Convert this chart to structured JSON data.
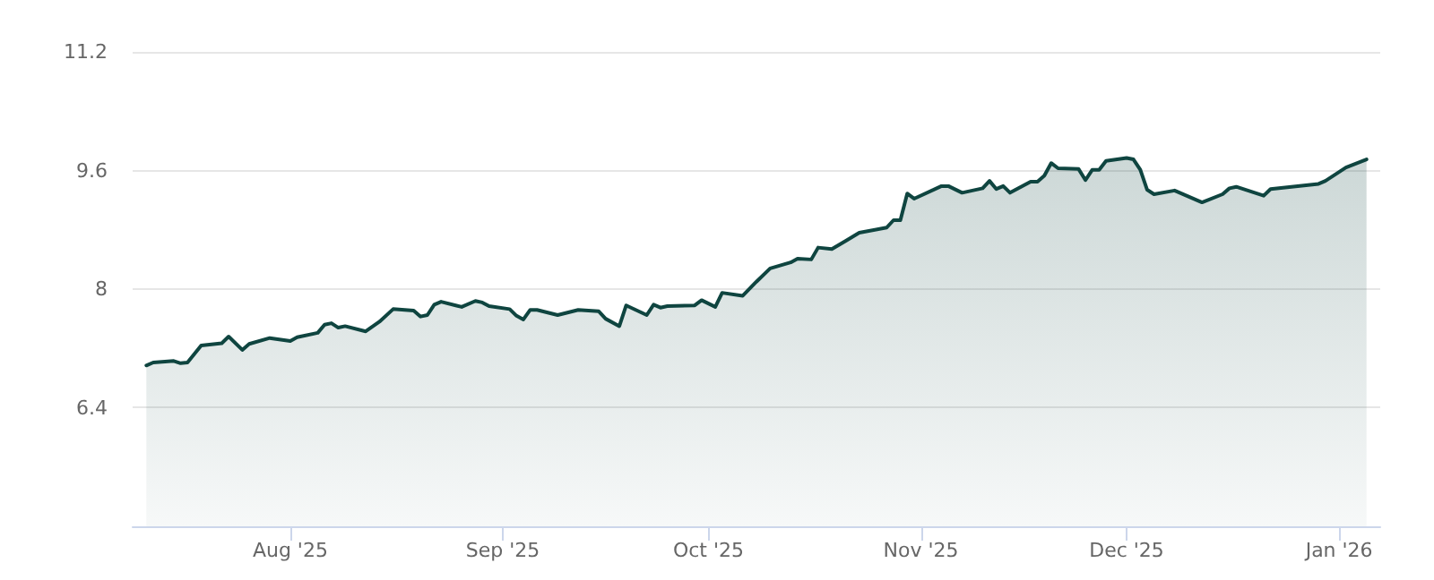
{
  "chart_data": {
    "type": "area",
    "xlim": [
      "2025-07-09",
      "2026-01-07"
    ],
    "ylim": [
      4.8,
      11.2
    ],
    "xticks": [
      {
        "value": "2025-08-01",
        "label": "Aug '25"
      },
      {
        "value": "2025-09-01",
        "label": "Sep '25"
      },
      {
        "value": "2025-10-01",
        "label": "Oct '25"
      },
      {
        "value": "2025-11-01",
        "label": "Nov '25"
      },
      {
        "value": "2025-12-01",
        "label": "Dec '25"
      },
      {
        "value": "2026-01-01",
        "label": "Jan '26"
      }
    ],
    "yticks": [
      6.4,
      8,
      9.6,
      11.2
    ],
    "grid": "y",
    "marker": "none",
    "line_style": "solid",
    "x": [
      "2025-07-11",
      "2025-07-12",
      "2025-07-15",
      "2025-07-16",
      "2025-07-17",
      "2025-07-19",
      "2025-07-22",
      "2025-07-23",
      "2025-07-25",
      "2025-07-26",
      "2025-07-29",
      "2025-08-01",
      "2025-08-02",
      "2025-08-05",
      "2025-08-06",
      "2025-08-07",
      "2025-08-08",
      "2025-08-09",
      "2025-08-12",
      "2025-08-14",
      "2025-08-16",
      "2025-08-19",
      "2025-08-20",
      "2025-08-21",
      "2025-08-22",
      "2025-08-23",
      "2025-08-26",
      "2025-08-28",
      "2025-08-29",
      "2025-08-30",
      "2025-09-02",
      "2025-09-03",
      "2025-09-04",
      "2025-09-05",
      "2025-09-06",
      "2025-09-09",
      "2025-09-12",
      "2025-09-15",
      "2025-09-16",
      "2025-09-18",
      "2025-09-19",
      "2025-09-22",
      "2025-09-23",
      "2025-09-24",
      "2025-09-25",
      "2025-09-29",
      "2025-09-30",
      "2025-10-02",
      "2025-10-03",
      "2025-10-06",
      "2025-10-08",
      "2025-10-10",
      "2025-10-13",
      "2025-10-14",
      "2025-10-16",
      "2025-10-17",
      "2025-10-19",
      "2025-10-21",
      "2025-10-23",
      "2025-10-27",
      "2025-10-28",
      "2025-10-29",
      "2025-10-30",
      "2025-10-31",
      "2025-11-04",
      "2025-11-05",
      "2025-11-07",
      "2025-11-10",
      "2025-11-11",
      "2025-11-12",
      "2025-11-13",
      "2025-11-14",
      "2025-11-17",
      "2025-11-18",
      "2025-11-19",
      "2025-11-20",
      "2025-11-21",
      "2025-11-24",
      "2025-11-25",
      "2025-11-26",
      "2025-11-27",
      "2025-11-28",
      "2025-12-01",
      "2025-12-02",
      "2025-12-03",
      "2025-12-04",
      "2025-12-05",
      "2025-12-08",
      "2025-12-12",
      "2025-12-15",
      "2025-12-16",
      "2025-12-17",
      "2025-12-21",
      "2025-12-22",
      "2025-12-29",
      "2025-12-30",
      "2026-01-02",
      "2026-01-05"
    ],
    "series": [
      {
        "color": "#0f4540",
        "values": [
          6.97,
          7.01,
          7.03,
          7.0,
          7.01,
          7.24,
          7.27,
          7.36,
          7.18,
          7.26,
          7.34,
          7.3,
          7.35,
          7.41,
          7.52,
          7.54,
          7.48,
          7.5,
          7.43,
          7.56,
          7.73,
          7.71,
          7.63,
          7.65,
          7.79,
          7.83,
          7.76,
          7.84,
          7.82,
          7.77,
          7.73,
          7.64,
          7.59,
          7.72,
          7.72,
          7.65,
          7.72,
          7.7,
          7.6,
          7.5,
          7.78,
          7.65,
          7.79,
          7.75,
          7.77,
          7.78,
          7.85,
          7.76,
          7.95,
          7.91,
          8.1,
          8.28,
          8.36,
          8.41,
          8.4,
          8.56,
          8.54,
          8.65,
          8.76,
          8.83,
          8.93,
          8.93,
          9.29,
          9.22,
          9.39,
          9.39,
          9.3,
          9.36,
          9.46,
          9.35,
          9.39,
          9.3,
          9.45,
          9.45,
          9.53,
          9.7,
          9.63,
          9.62,
          9.47,
          9.61,
          9.61,
          9.73,
          9.77,
          9.75,
          9.61,
          9.34,
          9.28,
          9.33,
          9.17,
          9.28,
          9.36,
          9.38,
          9.26,
          9.35,
          9.42,
          9.46,
          9.64,
          9.75
        ]
      }
    ]
  }
}
